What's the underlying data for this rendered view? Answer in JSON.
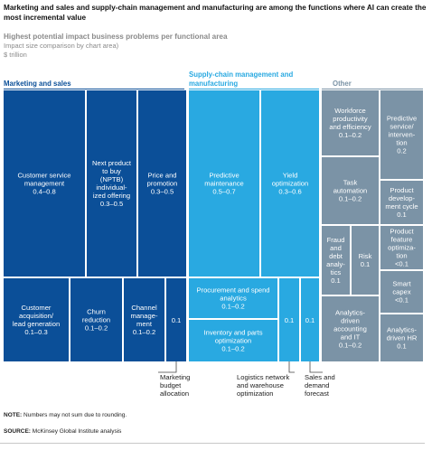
{
  "header": {
    "title": "Marketing and sales and supply-chain management and manufacturing are among the functions where AI can create the most incremental value",
    "subtitle": "Highest potential impact business problems per functional area",
    "size_note": "Impact size comparison by chart area)",
    "unit": "$ trillion"
  },
  "groups": [
    {
      "name": "Marketing and sales",
      "color": "#0b4f98"
    },
    {
      "name": "Supply-chain management and manufacturing",
      "color": "#29a9e1"
    },
    {
      "name": "Other",
      "color": "#7b93a6"
    }
  ],
  "chart_data": {
    "type": "treemap",
    "title": "Highest potential impact business problems per functional area",
    "subtitle": "Impact size comparison by chart area)",
    "unit": "$ trillion",
    "groups": [
      {
        "name": "Marketing and sales",
        "items": [
          {
            "label": "Customer service management",
            "value": "0.4–0.8"
          },
          {
            "label": "Next product to buy (NPTB) individual-ized offering",
            "value": "0.3–0.5"
          },
          {
            "label": "Price and promotion",
            "value": "0.3–0.5"
          },
          {
            "label": "Customer acquisition/ lead generation",
            "value": "0.1–0.3"
          },
          {
            "label": "Churn reduction",
            "value": "0.1–0.2"
          },
          {
            "label": "Channel manage-ment",
            "value": "0.1–0.2"
          },
          {
            "label": "Marketing budget allocation",
            "value": "0.1"
          }
        ]
      },
      {
        "name": "Supply-chain management and manufacturing",
        "items": [
          {
            "label": "Predictive maintenance",
            "value": "0.5–0.7"
          },
          {
            "label": "Yield optimization",
            "value": "0.3–0.6"
          },
          {
            "label": "Procurement and spend analytics",
            "value": "0.1–0.2"
          },
          {
            "label": "Inventory and parts optimization",
            "value": "0.1–0.2"
          },
          {
            "label": "Logistics network and warehouse optimization",
            "value": "0.1"
          },
          {
            "label": "Sales and demand forecast",
            "value": "0.1"
          }
        ]
      },
      {
        "name": "Other",
        "items": [
          {
            "label": "Workforce productivity and efficiency",
            "value": "0.1–0.2"
          },
          {
            "label": "Predictive service/ interven-tion",
            "value": "0.2"
          },
          {
            "label": "Task automation",
            "value": "0.1–0.2"
          },
          {
            "label": "Product develop-ment cycle",
            "value": "0.1"
          },
          {
            "label": "Fraud and debt analy-tics",
            "value": "0.1"
          },
          {
            "label": "Risk",
            "value": "0.1"
          },
          {
            "label": "Product feature optimiza-tion",
            "value": "<0.1"
          },
          {
            "label": "Smart capex",
            "value": "<0.1"
          },
          {
            "label": "Analytics-driven accounting and IT",
            "value": "0.1–0.2"
          },
          {
            "label": "Analytics-driven HR",
            "value": "0.1"
          }
        ]
      }
    ]
  },
  "notes": {
    "note_label": "NOTE:",
    "note_text": "Numbers may not sum due to rounding.",
    "source_label": "SOURCE:",
    "source_text": "McKinsey Global Institute analysis"
  }
}
